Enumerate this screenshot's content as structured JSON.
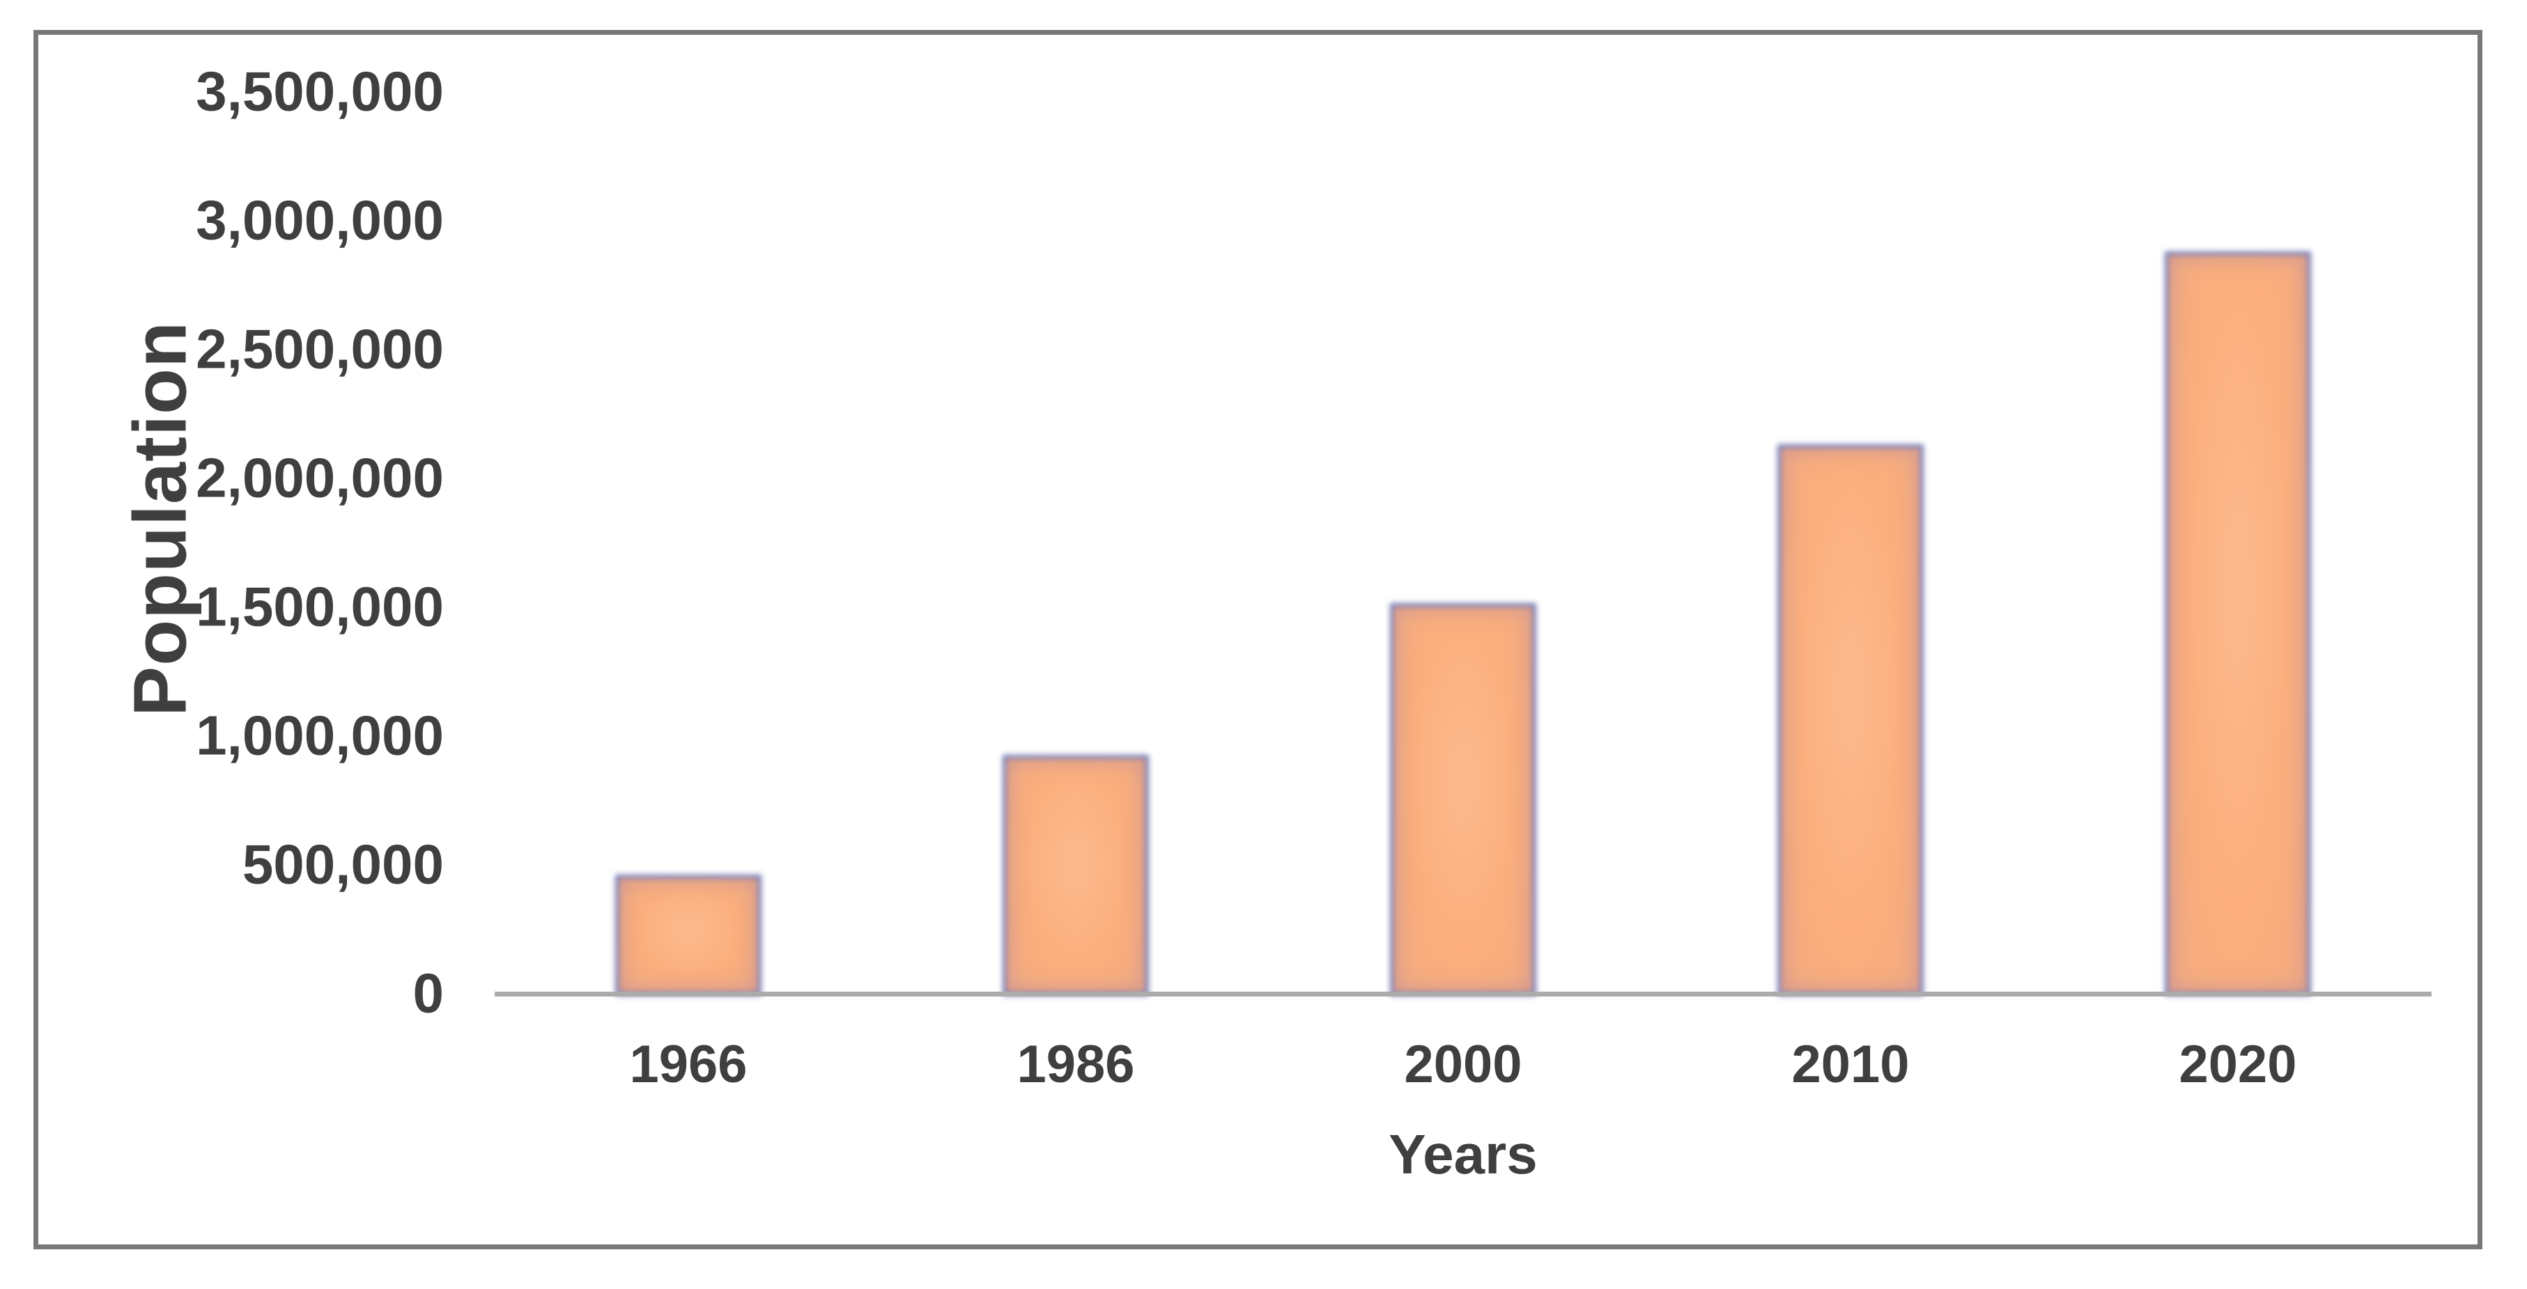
{
  "chart_data": {
    "type": "bar",
    "title": "",
    "categories": [
      "1966",
      "1986",
      "2000",
      "2010",
      "2020"
    ],
    "values": [
      470000,
      935000,
      1525000,
      2140000,
      2890000
    ],
    "series_name": "Population",
    "xlabel": "Years",
    "ylabel": "Population",
    "ylim": [
      0,
      3500000
    ],
    "ytick_step": 500000,
    "ytick_labels": [
      "3,500,000",
      "3,000,000",
      "2,500,000",
      "2,000,000",
      "1,500,000",
      "1,000,000",
      "500,000",
      "0"
    ],
    "ytick_values": [
      3500000,
      3000000,
      2500000,
      2000000,
      1500000,
      1000000,
      500000,
      0
    ],
    "grid": false,
    "legend": null,
    "colors": {
      "bar_fill": "#fbae7c",
      "bar_border": "#6e7ab8",
      "axis_line": "#ababab",
      "text": "#3f3f3f",
      "frame_border": "#787878",
      "background": "#ffffff"
    }
  }
}
